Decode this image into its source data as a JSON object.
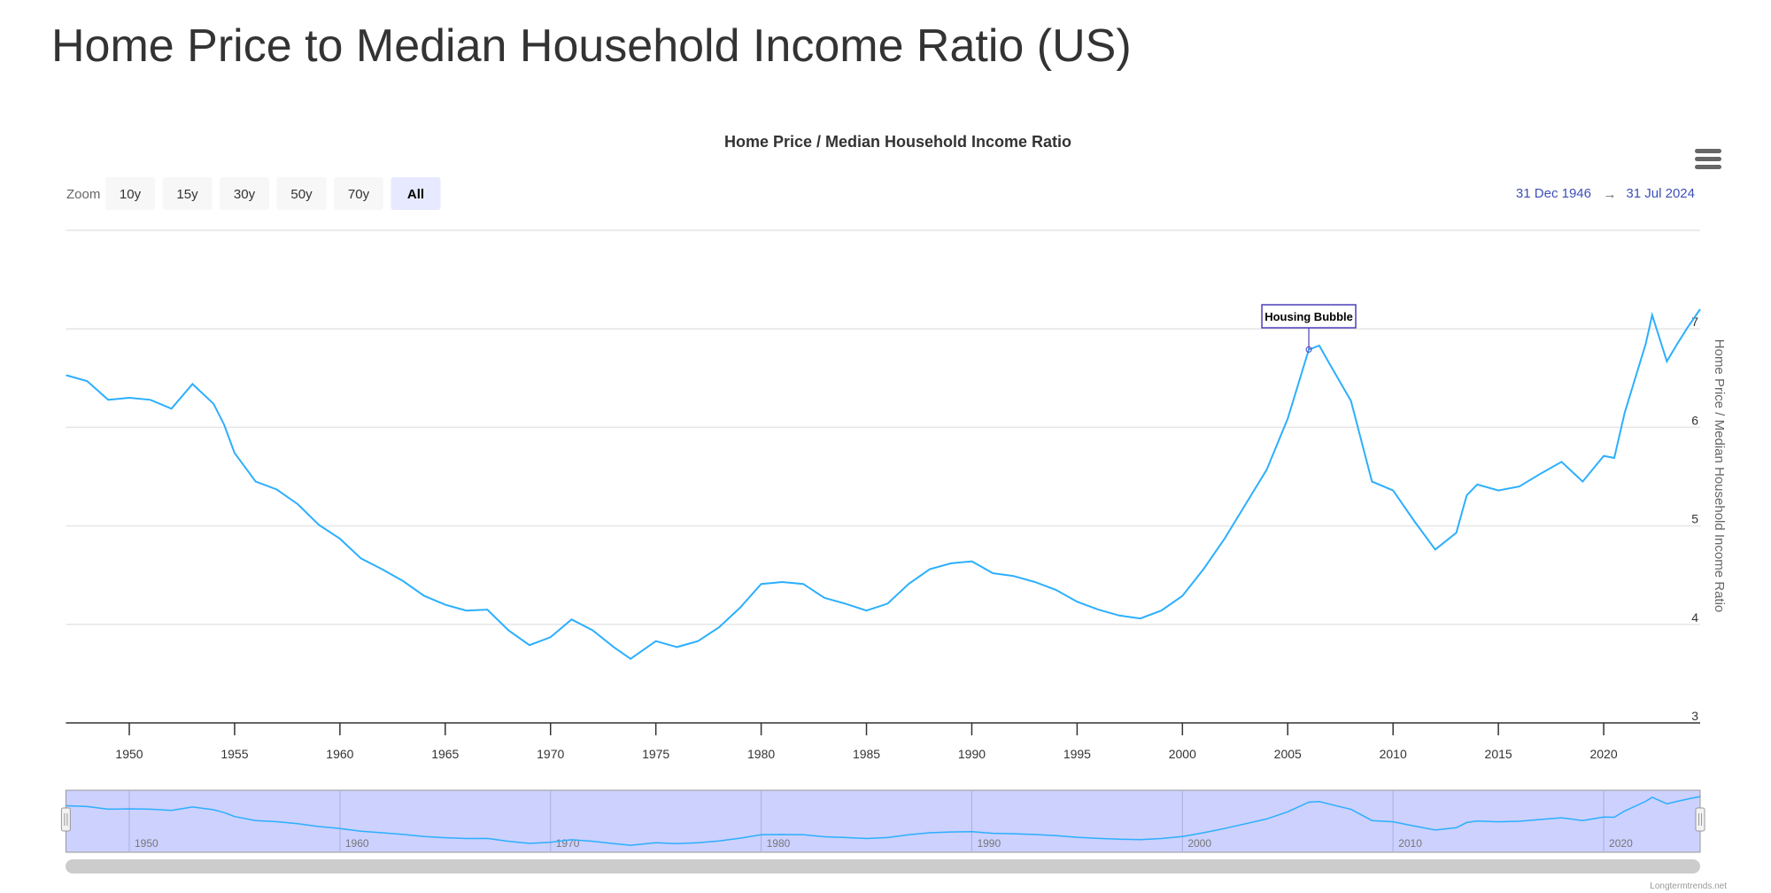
{
  "page": {
    "title": "Home Price to Median Household Income Ratio (US)"
  },
  "range_selector": {
    "zoom_label": "Zoom",
    "buttons": [
      "10y",
      "15y",
      "30y",
      "50y",
      "70y",
      "All"
    ],
    "selected": "All",
    "from": "31 Dec 1946",
    "arrow": "→",
    "to": "31 Jul 2024"
  },
  "menu": {
    "icon": "hamburger-menu-icon"
  },
  "credits": "Longtermtrends.net",
  "colors": {
    "series": "#2caffe",
    "annotation": "#4b3fb8",
    "navigator_mask": "#ccd1fd",
    "selected_button": "#e6e9ff"
  },
  "chart_data": {
    "type": "line",
    "title": "Home Price / Median Household Income Ratio",
    "xlabel": "",
    "ylabel": "Home Price / Median Household Income Ratio",
    "xlim": [
      1946.99,
      2024.58
    ],
    "ylim": [
      3,
      8
    ],
    "yticks": [
      "3",
      "4",
      "5",
      "6",
      "7"
    ],
    "xticks": [
      "1950",
      "1955",
      "1960",
      "1965",
      "1970",
      "1975",
      "1980",
      "1985",
      "1990",
      "1995",
      "2000",
      "2005",
      "2010",
      "2015",
      "2020"
    ],
    "navigator_ticks": [
      "1950",
      "1960",
      "1970",
      "1980",
      "1990",
      "2000",
      "2010",
      "2020"
    ],
    "grid": true,
    "annotation": {
      "label": "Housing Bubble",
      "x": 2006.0,
      "y": 6.79
    },
    "series": [
      {
        "name": "Home Price / Median Household Income Ratio",
        "x": [
          1947,
          1948,
          1949,
          1950,
          1951,
          1952,
          1953,
          1954,
          1954.5,
          1955,
          1956,
          1957,
          1958,
          1959,
          1960,
          1961,
          1962,
          1963,
          1964,
          1965,
          1966,
          1967,
          1968,
          1969,
          1970,
          1971,
          1972,
          1973,
          1973.8,
          1975,
          1976,
          1977,
          1978,
          1979,
          1980,
          1981,
          1982,
          1983,
          1984,
          1985,
          1986,
          1987,
          1988,
          1989,
          1990,
          1991,
          1992,
          1993,
          1994,
          1995,
          1996,
          1997,
          1998,
          1999,
          2000,
          2001,
          2002,
          2003,
          2004,
          2005,
          2006,
          2006.5,
          2007,
          2008,
          2009,
          2010,
          2011,
          2012,
          2013,
          2013.5,
          2014,
          2015,
          2016,
          2017,
          2018,
          2019,
          2020,
          2020.5,
          2021,
          2022,
          2022.3,
          2023,
          2023.5,
          2024,
          2024.58
        ],
        "values": [
          6.53,
          6.47,
          6.28,
          6.3,
          6.28,
          6.19,
          6.44,
          6.24,
          6.03,
          5.74,
          5.45,
          5.37,
          5.22,
          5.01,
          4.87,
          4.67,
          4.56,
          4.44,
          4.29,
          4.2,
          4.14,
          4.15,
          3.94,
          3.79,
          3.87,
          4.05,
          3.94,
          3.77,
          3.65,
          3.83,
          3.77,
          3.83,
          3.97,
          4.17,
          4.41,
          4.43,
          4.41,
          4.27,
          4.21,
          4.14,
          4.21,
          4.41,
          4.56,
          4.62,
          4.64,
          4.52,
          4.49,
          4.43,
          4.35,
          4.23,
          4.15,
          4.09,
          4.06,
          4.14,
          4.29,
          4.56,
          4.87,
          5.22,
          5.57,
          6.09,
          6.79,
          6.83,
          6.64,
          6.27,
          5.45,
          5.36,
          5.05,
          4.76,
          4.93,
          5.31,
          5.42,
          5.36,
          5.4,
          5.53,
          5.65,
          5.45,
          5.71,
          5.69,
          6.15,
          6.85,
          7.14,
          6.67,
          6.85,
          7.02,
          7.2
        ]
      }
    ]
  }
}
